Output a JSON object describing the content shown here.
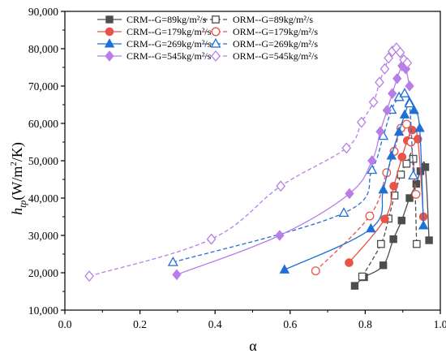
{
  "chart_data": {
    "type": "line",
    "xlabel": "α",
    "ylabel": "h_tp(W/m²/K)",
    "ylabel_parts": {
      "main": "h",
      "sub": "tp",
      "unit_open": "(W/m",
      "unit_exp": "2",
      "unit_close": "/K)"
    },
    "xlim": [
      0.0,
      1.0
    ],
    "ylim": [
      10000,
      90000
    ],
    "x_ticks": [
      0.0,
      0.2,
      0.4,
      0.6,
      0.8,
      1.0
    ],
    "x_tick_labels": [
      "0.0",
      "0.2",
      "0.4",
      "0.6",
      "0.8",
      "1.0"
    ],
    "y_ticks": [
      10000,
      20000,
      30000,
      40000,
      50000,
      60000,
      70000,
      80000,
      90000
    ],
    "y_tick_labels": [
      "10,000",
      "20,000",
      "30,000",
      "40,000",
      "50,000",
      "60,000",
      "70,000",
      "80,000",
      "90,000"
    ],
    "grid": false,
    "legend_placement": "top-center",
    "series": [
      {
        "name": "CRM--G=89kg/m²/s",
        "color": "#4d4d4d",
        "marker": "square",
        "filled": true,
        "line": "solid",
        "points": [
          [
            0.772,
            16500
          ],
          [
            0.797,
            18800
          ],
          [
            0.848,
            22000
          ],
          [
            0.875,
            29000
          ],
          [
            0.897,
            34000
          ],
          [
            0.918,
            40000
          ],
          [
            0.936,
            43800
          ],
          [
            0.947,
            47200
          ],
          [
            0.96,
            48300
          ],
          [
            0.97,
            28700
          ]
        ]
      },
      {
        "name": "ORM--G=89kg/m²/s",
        "color": "#4d4d4d",
        "marker": "square",
        "filled": false,
        "line": "dashed",
        "points": [
          [
            0.792,
            19000
          ],
          [
            0.842,
            27700
          ],
          [
            0.862,
            34500
          ],
          [
            0.878,
            40700
          ],
          [
            0.895,
            46300
          ],
          [
            0.91,
            49200
          ],
          [
            0.928,
            50500
          ],
          [
            0.937,
            27700
          ]
        ]
      },
      {
        "name": "CRM--G=179kg/m²/s",
        "color": "#e8534a",
        "marker": "circle",
        "filled": true,
        "line": "solid",
        "points": [
          [
            0.757,
            22700
          ],
          [
            0.852,
            34400
          ],
          [
            0.876,
            43200
          ],
          [
            0.898,
            51000
          ],
          [
            0.912,
            55400
          ],
          [
            0.925,
            58200
          ],
          [
            0.94,
            55800
          ],
          [
            0.955,
            35000
          ]
        ]
      },
      {
        "name": "ORM--G=179kg/m²/s",
        "color": "#e8534a",
        "marker": "circle",
        "filled": false,
        "line": "dashed",
        "points": [
          [
            0.668,
            20500
          ],
          [
            0.812,
            35200
          ],
          [
            0.857,
            46800
          ],
          [
            0.877,
            52500
          ],
          [
            0.895,
            58700
          ],
          [
            0.91,
            59800
          ],
          [
            0.922,
            55000
          ],
          [
            0.935,
            41000
          ]
        ]
      },
      {
        "name": "CRM--G=269kg/m²/s",
        "color": "#1f6fd6",
        "marker": "triangle",
        "filled": true,
        "line": "solid",
        "points": [
          [
            0.585,
            20800
          ],
          [
            0.815,
            31800
          ],
          [
            0.848,
            42200
          ],
          [
            0.87,
            51300
          ],
          [
            0.89,
            57700
          ],
          [
            0.905,
            62300
          ],
          [
            0.918,
            65700
          ],
          [
            0.93,
            63500
          ],
          [
            0.945,
            58700
          ],
          [
            0.955,
            32600
          ]
        ]
      },
      {
        "name": "ORM--G=269kg/m²/s",
        "color": "#1f6fd6",
        "marker": "triangle",
        "filled": false,
        "line": "dashed",
        "points": [
          [
            0.288,
            22800
          ],
          [
            0.743,
            36000
          ],
          [
            0.818,
            47500
          ],
          [
            0.848,
            56600
          ],
          [
            0.87,
            63600
          ],
          [
            0.89,
            67000
          ],
          [
            0.905,
            68000
          ],
          [
            0.918,
            65300
          ],
          [
            0.928,
            46000
          ]
        ]
      },
      {
        "name": "CRM--G=545kg/m²/s",
        "color": "#b87ee8",
        "marker": "diamond",
        "filled": true,
        "line": "solid",
        "points": [
          [
            0.298,
            19500
          ],
          [
            0.572,
            30000
          ],
          [
            0.758,
            41200
          ],
          [
            0.818,
            50000
          ],
          [
            0.84,
            57800
          ],
          [
            0.858,
            63500
          ],
          [
            0.872,
            68000
          ],
          [
            0.885,
            72000
          ],
          [
            0.898,
            75400
          ],
          [
            0.908,
            74600
          ],
          [
            0.918,
            70000
          ]
        ]
      },
      {
        "name": "ORM--G=545kg/m²/s",
        "color": "#b87ee8",
        "marker": "diamond",
        "filled": false,
        "line": "dashed",
        "points": [
          [
            0.065,
            19100
          ],
          [
            0.39,
            29000
          ],
          [
            0.575,
            43200
          ],
          [
            0.75,
            53400
          ],
          [
            0.79,
            60300
          ],
          [
            0.822,
            65700
          ],
          [
            0.838,
            71000
          ],
          [
            0.852,
            74600
          ],
          [
            0.862,
            77500
          ],
          [
            0.872,
            79300
          ],
          [
            0.883,
            80200
          ],
          [
            0.893,
            79000
          ],
          [
            0.903,
            77000
          ],
          [
            0.912,
            76200
          ]
        ]
      }
    ]
  }
}
